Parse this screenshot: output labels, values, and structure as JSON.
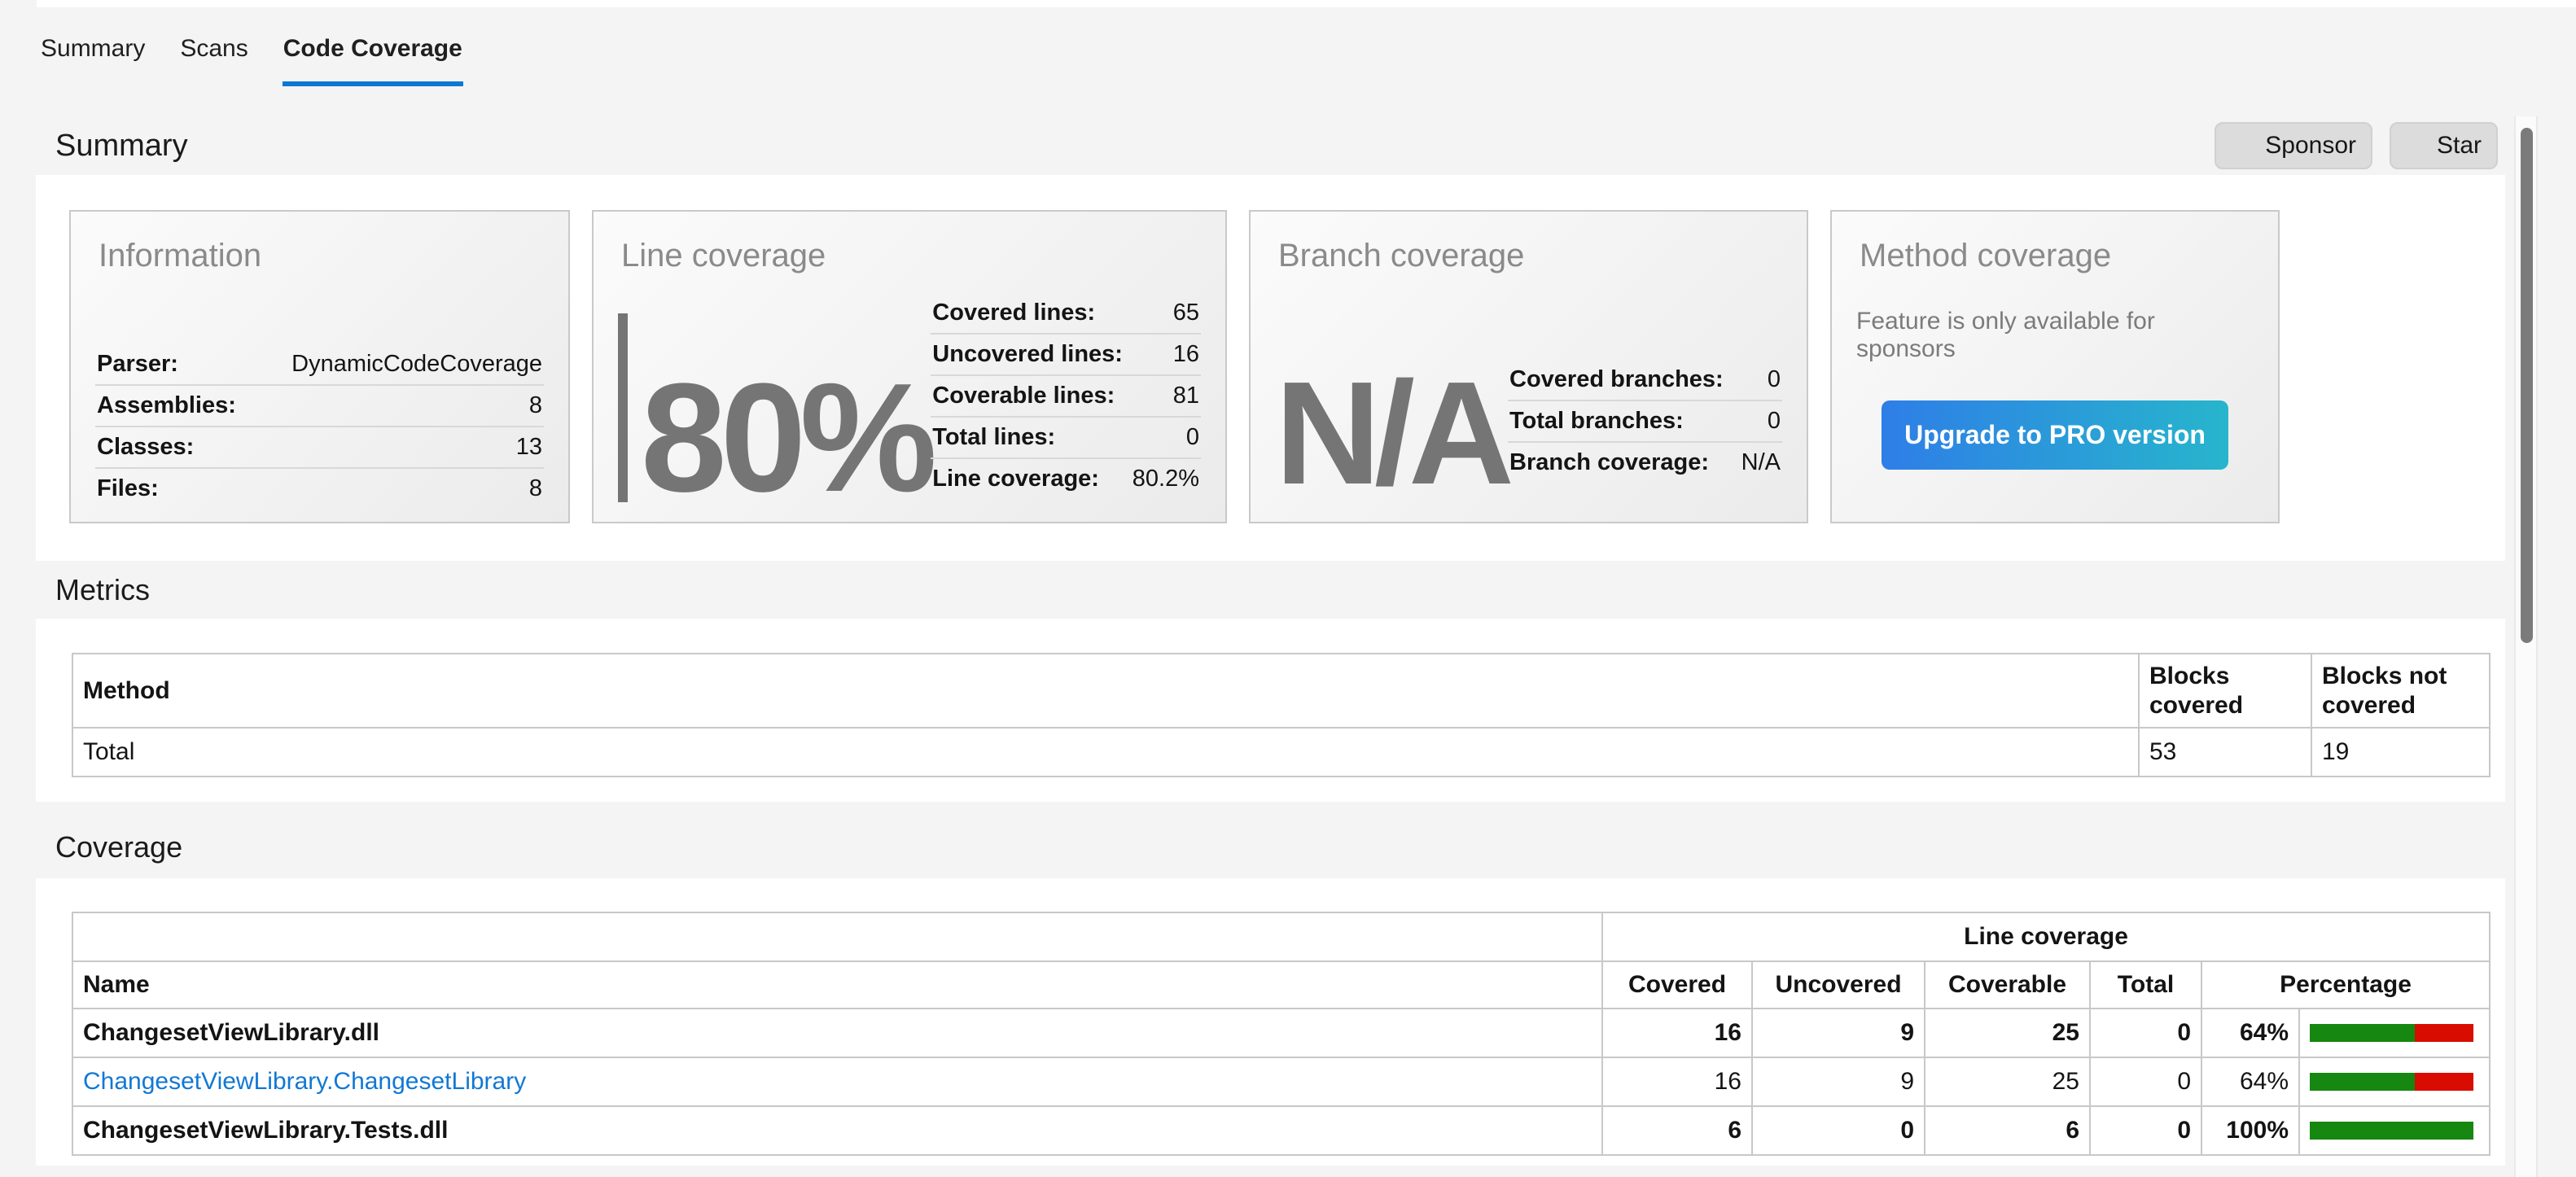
{
  "tabs": [
    {
      "label": "Summary",
      "active": false
    },
    {
      "label": "Scans",
      "active": false
    },
    {
      "label": "Code Coverage",
      "active": true
    }
  ],
  "header": {
    "title": "Summary",
    "sponsor_button": "Sponsor",
    "star_button": "Star"
  },
  "sections": {
    "metrics_heading": "Metrics",
    "coverage_heading": "Coverage"
  },
  "cards": {
    "information": {
      "title": "Information",
      "rows": [
        {
          "label": "Parser:",
          "value": "DynamicCodeCoverage"
        },
        {
          "label": "Assemblies:",
          "value": "8"
        },
        {
          "label": "Classes:",
          "value": "13"
        },
        {
          "label": "Files:",
          "value": "8"
        }
      ]
    },
    "line_coverage": {
      "title": "Line coverage",
      "big_value": "80%",
      "rows": [
        {
          "label": "Covered lines:",
          "value": "65"
        },
        {
          "label": "Uncovered lines:",
          "value": "16"
        },
        {
          "label": "Coverable lines:",
          "value": "81"
        },
        {
          "label": "Total lines:",
          "value": "0"
        },
        {
          "label": "Line coverage:",
          "value": "80.2%"
        }
      ]
    },
    "branch_coverage": {
      "title": "Branch coverage",
      "big_value": "N/A",
      "rows": [
        {
          "label": "Covered branches:",
          "value": "0"
        },
        {
          "label": "Total branches:",
          "value": "0"
        },
        {
          "label": "Branch coverage:",
          "value": "N/A"
        }
      ]
    },
    "method_coverage": {
      "title": "Method coverage",
      "message": "Feature is only available for sponsors",
      "button_label": "Upgrade to PRO version"
    }
  },
  "metrics_table": {
    "headers": [
      "Method",
      "Blocks covered",
      "Blocks not covered"
    ],
    "rows": [
      {
        "method": "Total",
        "blocks_covered": "53",
        "blocks_not_covered": "19"
      }
    ]
  },
  "coverage_table": {
    "group_header": "Line coverage",
    "headers": [
      "Name",
      "Covered",
      "Uncovered",
      "Coverable",
      "Total",
      "Percentage"
    ],
    "rows": [
      {
        "name": "ChangesetViewLibrary.dll",
        "style": "assembly",
        "covered": "16",
        "uncovered": "9",
        "coverable": "25",
        "total": "0",
        "percentage": "64%",
        "percent_value": 64
      },
      {
        "name": "ChangesetViewLibrary.ChangesetLibrary",
        "style": "class-link",
        "covered": "16",
        "uncovered": "9",
        "coverable": "25",
        "total": "0",
        "percentage": "64%",
        "percent_value": 64
      },
      {
        "name": "ChangesetViewLibrary.Tests.dll",
        "style": "assembly",
        "covered": "6",
        "uncovered": "0",
        "coverable": "6",
        "total": "0",
        "percentage": "100%",
        "percent_value": 100
      }
    ]
  },
  "colors": {
    "accent_blue": "#0b79d4",
    "link_blue": "#1178d4",
    "bar_green": "#168711",
    "bar_red": "#d90c01",
    "button_gradient_start": "#2e7ee7",
    "button_gradient_end": "#27b5cc",
    "page_gray": "#f4f4f5"
  }
}
